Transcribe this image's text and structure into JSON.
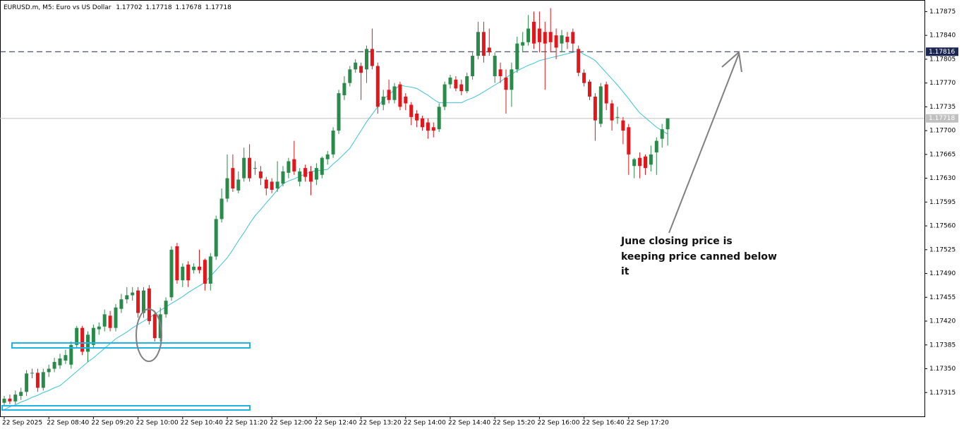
{
  "chart_data": {
    "type": "candlestick",
    "title": "EURUSD.m, M5:  Euro vs US Dollar",
    "categories": [
      "22 Sep 2025",
      null,
      null,
      null,
      null,
      null,
      null,
      null,
      "22 Sep 08:40",
      null,
      null,
      null,
      null,
      null,
      null,
      null,
      "22 Sep 09:20",
      null,
      null,
      null,
      null,
      null,
      null,
      null,
      "22 Sep 10:00",
      null,
      null,
      null,
      null,
      null,
      null,
      null,
      "22 Sep 10:40",
      null,
      null,
      null,
      null,
      null,
      null,
      null,
      "22 Sep 11:20",
      null,
      null,
      null,
      null,
      null,
      null,
      null,
      "22 Sep 12:00",
      null,
      null,
      null,
      null,
      null,
      null,
      null,
      "22 Sep 12:40",
      null,
      null,
      null,
      null,
      null,
      null,
      null,
      "22 Sep 13:20",
      null,
      null,
      null,
      null,
      null,
      null,
      null,
      "22 Sep 14:00",
      null,
      null,
      null,
      null,
      null,
      null,
      null,
      "22 Sep 14:40",
      null,
      null,
      null,
      null,
      null,
      null,
      null,
      "22 Sep 15:20",
      null,
      null,
      null,
      null,
      null,
      null,
      null,
      "22 Sep 16:00",
      null,
      null,
      null,
      null,
      null,
      null,
      null,
      "22 Sep 16:40",
      null,
      null,
      null,
      null,
      null,
      null,
      null,
      "22 Sep 17:20",
      null,
      null,
      null,
      null,
      null,
      null,
      null
    ],
    "open": [
      1.173,
      1.17306,
      1.17302,
      1.1731,
      1.17316,
      1.17343,
      1.17344,
      1.17322,
      1.17345,
      1.1735,
      1.17355,
      1.17362,
      1.17356,
      1.17385,
      1.1741,
      1.17375,
      1.17385,
      1.17408,
      1.17412,
      1.17428,
      1.1741,
      1.17438,
      1.17452,
      1.17458,
      1.17465,
      1.17432,
      1.17468,
      1.1743,
      1.17395,
      1.1743,
      1.17455,
      1.1753,
      1.1748,
      1.17503,
      1.17495,
      1.175,
      1.1751,
      1.17475,
      1.17515,
      1.1757,
      1.176,
      1.17645,
      1.17612,
      1.1763,
      1.1766,
      1.17645,
      1.1764,
      1.17628,
      1.17625,
      1.17615,
      1.17622,
      1.17638,
      1.17658,
      1.17625,
      1.17645,
      1.1764,
      1.17628,
      1.17635,
      1.17658,
      1.17665,
      1.177,
      1.17752,
      1.1777,
      1.1779,
      1.17795,
      1.1779,
      1.1782,
      1.17795,
      1.17738,
      1.1776,
      1.17745,
      1.17768,
      1.1775,
      1.17738,
      1.17725,
      1.17718,
      1.17712,
      1.17705,
      1.17702,
      1.17735,
      1.17768,
      1.17775,
      1.17768,
      1.17758,
      1.1778,
      1.1781,
      1.17845,
      1.17822,
      1.1778,
      1.1779,
      1.17778,
      1.1776,
      1.1779,
      1.17825,
      1.1783,
      1.1786,
      1.1785,
      1.17845,
      1.17845,
      1.1784,
      1.17828,
      1.17838,
      1.17845,
      1.1782,
      1.17785,
      1.17772,
      1.1775,
      1.1771,
      1.17768,
      1.1774,
      1.1772,
      1.17715,
      1.17705,
      1.17648,
      1.1766,
      1.17662,
      1.1765,
      1.17668,
      1.17688,
      1.17702
    ],
    "high": [
      1.1731,
      1.17312,
      1.17318,
      1.17322,
      1.17348,
      1.1735,
      1.1735,
      1.1735,
      1.17356,
      1.17366,
      1.17372,
      1.17378,
      1.1739,
      1.17413,
      1.17413,
      1.17405,
      1.17415,
      1.17418,
      1.17437,
      1.17435,
      1.17445,
      1.1746,
      1.1747,
      1.1747,
      1.1747,
      1.1747,
      1.17473,
      1.17435,
      1.1744,
      1.17455,
      1.1753,
      1.17535,
      1.17505,
      1.17508,
      1.17505,
      1.17525,
      1.17512,
      1.1752,
      1.17575,
      1.17615,
      1.17665,
      1.17665,
      1.1764,
      1.17675,
      1.1768,
      1.17655,
      1.17648,
      1.17632,
      1.1763,
      1.17655,
      1.17648,
      1.1766,
      1.17685,
      1.17645,
      1.1765,
      1.17648,
      1.17652,
      1.17662,
      1.1767,
      1.17705,
      1.1776,
      1.1778,
      1.17795,
      1.17805,
      1.178,
      1.17825,
      1.1785,
      1.178,
      1.1776,
      1.17775,
      1.1777,
      1.17772,
      1.17755,
      1.17742,
      1.1773,
      1.17722,
      1.17718,
      1.17712,
      1.1774,
      1.17772,
      1.17782,
      1.1778,
      1.17775,
      1.17785,
      1.17815,
      1.1786,
      1.1786,
      1.1785,
      1.17815,
      1.178,
      1.1779,
      1.178,
      1.17838,
      1.17845,
      1.1787,
      1.17875,
      1.17875,
      1.1786,
      1.1788,
      1.1785,
      1.17848,
      1.17845,
      1.1785,
      1.17825,
      1.1779,
      1.17775,
      1.17755,
      1.1777,
      1.17772,
      1.17745,
      1.17735,
      1.1772,
      1.1771,
      1.1766,
      1.17668,
      1.17665,
      1.17678,
      1.1769,
      1.1771,
      1.17718
    ],
    "low": [
      1.17296,
      1.17298,
      1.17298,
      1.17304,
      1.1731,
      1.17336,
      1.17316,
      1.17318,
      1.17338,
      1.17345,
      1.1735,
      1.17357,
      1.1735,
      1.1738,
      1.1737,
      1.1736,
      1.1738,
      1.174,
      1.17405,
      1.17405,
      1.17405,
      1.17432,
      1.17446,
      1.1745,
      1.17425,
      1.17425,
      1.17415,
      1.1739,
      1.1739,
      1.17425,
      1.1745,
      1.17475,
      1.1747,
      1.1747,
      1.1749,
      1.1749,
      1.17465,
      1.17465,
      1.1751,
      1.17565,
      1.17595,
      1.1761,
      1.17608,
      1.17625,
      1.17625,
      1.17635,
      1.1762,
      1.17605,
      1.17608,
      1.1761,
      1.17618,
      1.1763,
      1.17635,
      1.17618,
      1.17625,
      1.17605,
      1.1762,
      1.1763,
      1.1765,
      1.1766,
      1.17695,
      1.17745,
      1.17765,
      1.17785,
      1.17745,
      1.1777,
      1.1779,
      1.17725,
      1.1773,
      1.1774,
      1.1774,
      1.1773,
      1.1773,
      1.17708,
      1.17705,
      1.177,
      1.17688,
      1.1769,
      1.17698,
      1.1773,
      1.17762,
      1.17758,
      1.17752,
      1.17755,
      1.17775,
      1.17805,
      1.178,
      1.1781,
      1.1777,
      1.1777,
      1.17725,
      1.17735,
      1.17785,
      1.17815,
      1.17825,
      1.1782,
      1.17815,
      1.1776,
      1.17815,
      1.17805,
      1.17815,
      1.1782,
      1.17815,
      1.1778,
      1.17765,
      1.17745,
      1.17685,
      1.17705,
      1.1773,
      1.177,
      1.1771,
      1.1768,
      1.17635,
      1.1763,
      1.1763,
      1.17635,
      1.1764,
      1.17635,
      1.17675,
      1.17678
    ],
    "close": [
      1.17306,
      1.17302,
      1.17312,
      1.17316,
      1.17343,
      1.17344,
      1.17322,
      1.17345,
      1.1735,
      1.1736,
      1.17365,
      1.1737,
      1.17385,
      1.1741,
      1.17375,
      1.174,
      1.1741,
      1.17412,
      1.1743,
      1.1741,
      1.1744,
      1.17452,
      1.17458,
      1.17462,
      1.17432,
      1.17465,
      1.1742,
      1.17395,
      1.1743,
      1.1745,
      1.17525,
      1.1748,
      1.175,
      1.1748,
      1.175,
      1.17495,
      1.17475,
      1.17515,
      1.1757,
      1.176,
      1.1763,
      1.17615,
      1.17628,
      1.1766,
      1.1763,
      1.17645,
      1.1763,
      1.17615,
      1.17613,
      1.17625,
      1.1764,
      1.17655,
      1.1764,
      1.1764,
      1.17632,
      1.17625,
      1.17645,
      1.1766,
      1.17665,
      1.177,
      1.17755,
      1.1777,
      1.1779,
      1.178,
      1.17785,
      1.1782,
      1.17795,
      1.17735,
      1.1775,
      1.17745,
      1.17765,
      1.17735,
      1.1774,
      1.1772,
      1.17715,
      1.17705,
      1.177,
      1.177,
      1.17735,
      1.17768,
      1.17778,
      1.17762,
      1.17758,
      1.1778,
      1.1781,
      1.17845,
      1.1781,
      1.17815,
      1.1781,
      1.1778,
      1.1776,
      1.1779,
      1.17828,
      1.1783,
      1.1785,
      1.17828,
      1.1783,
      1.17828,
      1.1783,
      1.17822,
      1.1784,
      1.1783,
      1.17828,
      1.17785,
      1.1777,
      1.1775,
      1.17715,
      1.17765,
      1.1774,
      1.17715,
      1.1772,
      1.177,
      1.17665,
      1.17658,
      1.17648,
      1.17645,
      1.17665,
      1.17685,
      1.17702,
      1.17718
    ],
    "up_color": "#2a8a4a",
    "down_color": "#e3161b",
    "ma": {
      "color": "#3cc3d6",
      "values": [
        1.1729,
        1.17294,
        1.17297,
        1.17301,
        1.17304,
        1.17308,
        1.17311,
        1.17315,
        1.17318,
        1.17322,
        1.17325,
        1.17332,
        1.17339,
        1.17346,
        1.17353,
        1.1736,
        1.17366,
        1.17373,
        1.1738,
        1.17387,
        1.17394,
        1.17399,
        1.17404,
        1.1741,
        1.17415,
        1.1742,
        1.17425,
        1.1743,
        1.17436,
        1.17441,
        1.17446,
        1.17451,
        1.17456,
        1.17462,
        1.17467,
        1.17472,
        1.17477,
        1.17486,
        1.17495,
        1.17504,
        1.17513,
        1.17525,
        1.17538,
        1.1755,
        1.17563,
        1.17575,
        1.17584,
        1.17594,
        1.17603,
        1.17613,
        1.17622,
        1.17626,
        1.17629,
        1.17633,
        1.17636,
        1.1764,
        1.17641,
        1.17642,
        1.17643,
        1.17651,
        1.17658,
        1.17666,
        1.17674,
        1.17687,
        1.177,
        1.17713,
        1.17724,
        1.17735,
        1.17746,
        1.17753,
        1.1776,
        1.17767,
        1.17765,
        1.17764,
        1.17762,
        1.17757,
        1.17752,
        1.17746,
        1.17741,
        1.17741,
        1.17741,
        1.17741,
        1.17741,
        1.17745,
        1.17748,
        1.17752,
        1.17757,
        1.17762,
        1.17767,
        1.17772,
        1.17778,
        1.17783,
        1.17788,
        1.17792,
        1.17796,
        1.17799,
        1.17803,
        1.17805,
        1.17807,
        1.17809,
        1.17811,
        1.17813,
        1.17815,
        1.17817,
        1.17812,
        1.17808,
        1.17803,
        1.17794,
        1.17785,
        1.17776,
        1.17767,
        1.17757,
        1.17747,
        1.17736,
        1.17726,
        1.17719,
        1.17712,
        1.17705,
        1.177,
        1.17695
      ]
    },
    "ylim": [
      1.1728,
      1.17892
    ],
    "yticks": [
      1.17315,
      {
        "value": 1.1735,
        "label": "1.17350"
      },
      1.17385,
      {
        "value": 1.1742,
        "label": "1.17420"
      },
      1.17455,
      {
        "value": 1.1749,
        "label": "1.17490"
      },
      1.17525,
      {
        "value": 1.1756,
        "label": "1.17560"
      },
      1.17595,
      {
        "value": 1.1763,
        "label": "1.17630"
      },
      1.17665,
      {
        "value": 1.177,
        "label": "1.17700"
      },
      1.17735,
      {
        "value": 1.1777,
        "label": "1.17770"
      },
      1.17805,
      {
        "value": 1.1784,
        "label": "1.17840"
      },
      1.17875
    ],
    "levels": [
      {
        "value": 1.17816,
        "color": "#1b2753",
        "style": "dashed"
      },
      {
        "value": 1.17718,
        "color": "#c0c0c0",
        "style": "solid"
      }
    ],
    "annotation": [
      "June closing price is",
      "keeping price canned below",
      "it"
    ]
  }
}
